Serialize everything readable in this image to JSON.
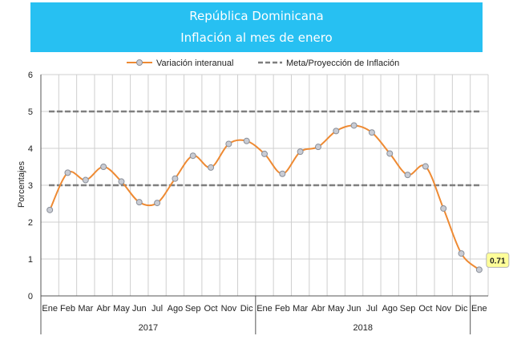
{
  "colors": {
    "banner": "#27c0f2",
    "series": "#ee8a33",
    "marker_fill": "#c9ccd4",
    "marker_stroke": "#8a8f99",
    "target": "#7f7f7f",
    "grid": "#cfcfcf",
    "label_fill": "#ffff99"
  },
  "chart_data": {
    "type": "line",
    "title": "República Dominicana",
    "subtitle": "Inflación al mes de enero",
    "ylabel": "Porcentajes",
    "xlabel": "",
    "ylim": [
      0,
      6
    ],
    "yticks": [
      "0",
      "1",
      "2",
      "3",
      "4",
      "5",
      "6"
    ],
    "grid": true,
    "legend_position": "top-center",
    "categories": [
      "Ene",
      "Feb",
      "Mar",
      "Abr",
      "May",
      "Jun",
      "Jul",
      "Ago",
      "Sep",
      "Oct",
      "Nov",
      "Dic",
      "Ene",
      "Feb",
      "Mar",
      "Abr",
      "May",
      "Jun",
      "Jul",
      "Ago",
      "Sep",
      "Oct",
      "Nov",
      "Dic",
      "Ene"
    ],
    "year_groups": [
      {
        "label": "2017",
        "count": 12
      },
      {
        "label": "2018",
        "count": 12
      }
    ],
    "series": [
      {
        "name": "Variación interanual",
        "style": "line-markers",
        "values": [
          2.33,
          3.34,
          3.14,
          3.5,
          3.1,
          2.54,
          2.52,
          3.18,
          3.8,
          3.48,
          4.12,
          4.2,
          3.85,
          3.31,
          3.91,
          4.04,
          4.47,
          4.62,
          4.43,
          3.86,
          3.28,
          3.51,
          2.37,
          1.15,
          0.71
        ]
      },
      {
        "name": "Meta/Proyección de Inflación",
        "style": "dashed",
        "lines": [
          3,
          5
        ]
      }
    ],
    "annotations": [
      {
        "point_index": 24,
        "text": "0.71"
      }
    ]
  }
}
